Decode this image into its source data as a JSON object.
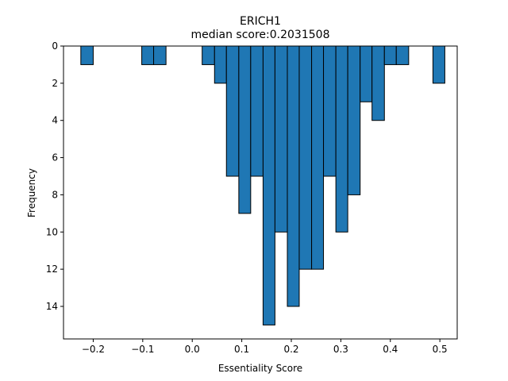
{
  "chart_data": {
    "type": "bar",
    "title": "ERICH1",
    "subtitle": "median score:0.2031508",
    "xlabel": "Essentiality Score",
    "ylabel": "Frequency",
    "xlim": [
      -0.26,
      0.535
    ],
    "ylim": [
      15.75,
      0
    ],
    "x_ticks": [
      -0.2,
      -0.1,
      0.0,
      0.1,
      0.2,
      0.3,
      0.4,
      0.5
    ],
    "x_tick_labels": [
      "−0.2",
      "−0.1",
      "0.0",
      "0.1",
      "0.2",
      "0.3",
      "0.4",
      "0.5"
    ],
    "y_ticks": [
      0,
      2,
      4,
      6,
      8,
      10,
      12,
      14
    ],
    "y_tick_labels": [
      "0",
      "2",
      "4",
      "6",
      "8",
      "10",
      "12",
      "14"
    ],
    "bar_color": "#1f77b4",
    "edge_color": "#000000",
    "bins": [
      {
        "x0": -0.225,
        "x1": -0.2,
        "count": 1
      },
      {
        "x0": -0.102,
        "x1": -0.078,
        "count": 1
      },
      {
        "x0": -0.078,
        "x1": -0.053,
        "count": 1
      },
      {
        "x0": 0.02,
        "x1": 0.045,
        "count": 1
      },
      {
        "x0": 0.045,
        "x1": 0.069,
        "count": 2
      },
      {
        "x0": 0.069,
        "x1": 0.094,
        "count": 7
      },
      {
        "x0": 0.094,
        "x1": 0.118,
        "count": 9
      },
      {
        "x0": 0.118,
        "x1": 0.143,
        "count": 7
      },
      {
        "x0": 0.143,
        "x1": 0.167,
        "count": 15
      },
      {
        "x0": 0.167,
        "x1": 0.192,
        "count": 10
      },
      {
        "x0": 0.192,
        "x1": 0.216,
        "count": 14
      },
      {
        "x0": 0.216,
        "x1": 0.241,
        "count": 12
      },
      {
        "x0": 0.241,
        "x1": 0.265,
        "count": 12
      },
      {
        "x0": 0.265,
        "x1": 0.29,
        "count": 7
      },
      {
        "x0": 0.29,
        "x1": 0.314,
        "count": 10
      },
      {
        "x0": 0.314,
        "x1": 0.339,
        "count": 8
      },
      {
        "x0": 0.339,
        "x1": 0.363,
        "count": 3
      },
      {
        "x0": 0.363,
        "x1": 0.388,
        "count": 4
      },
      {
        "x0": 0.388,
        "x1": 0.412,
        "count": 1
      },
      {
        "x0": 0.412,
        "x1": 0.437,
        "count": 1
      },
      {
        "x0": 0.486,
        "x1": 0.51,
        "count": 2
      }
    ]
  }
}
